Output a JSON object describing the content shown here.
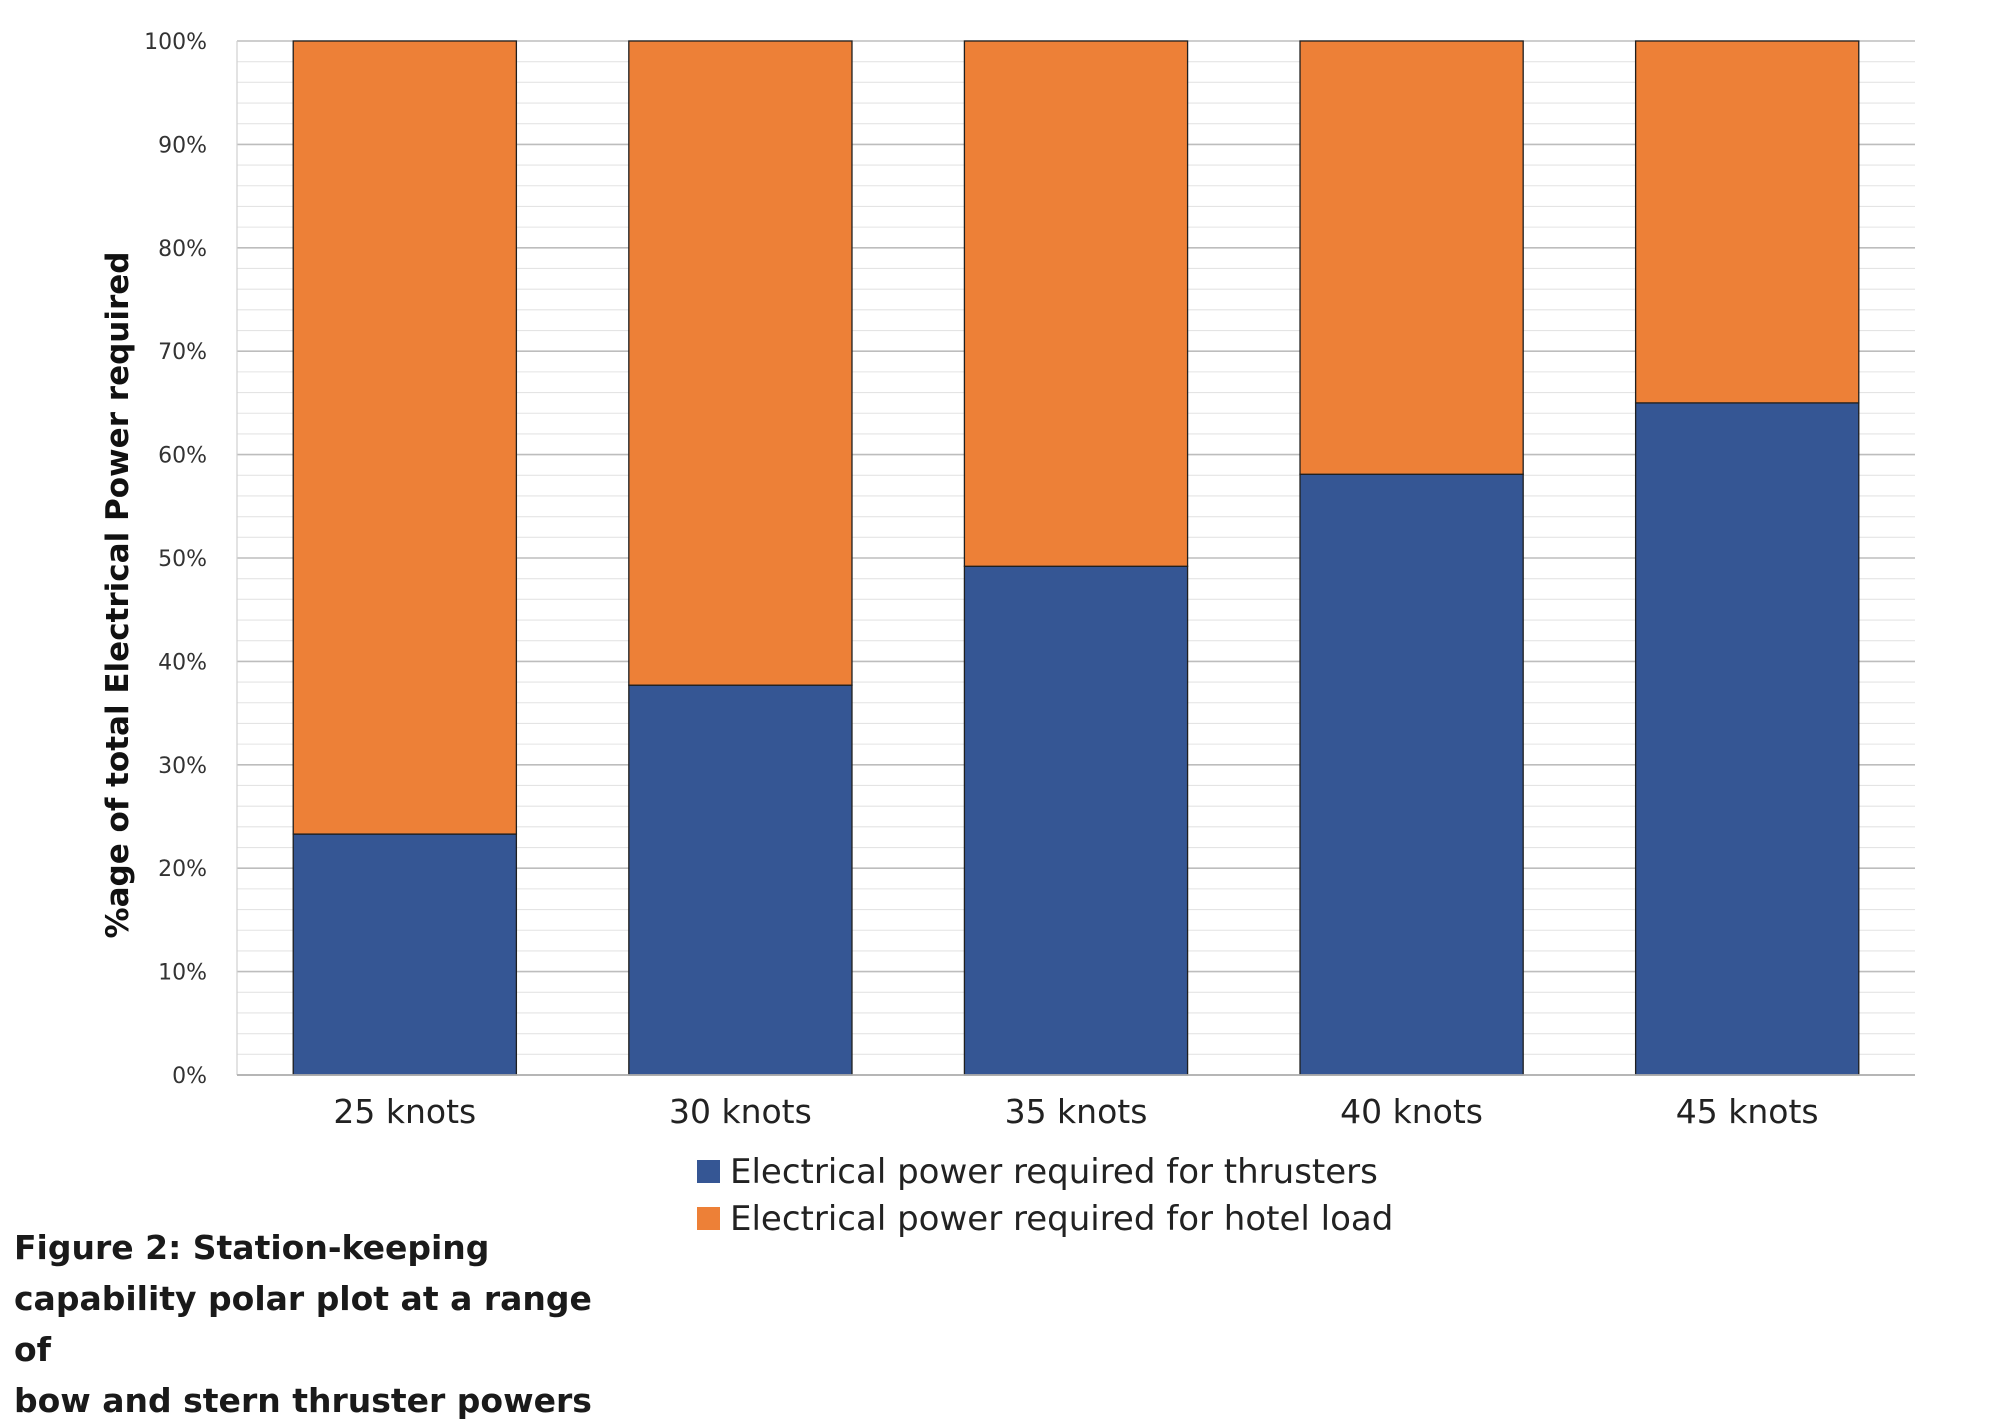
{
  "chart_data": {
    "type": "bar",
    "stacked": true,
    "categories": [
      "25 knots",
      "30 knots",
      "35 knots",
      "40 knots",
      "45 knots"
    ],
    "series": [
      {
        "name": "Electrical power required for thrusters",
        "color": "#355694",
        "values": [
          23.3,
          37.7,
          49.2,
          58.1,
          65.0
        ]
      },
      {
        "name": "Electrical power required for hotel load",
        "color": "#ed8037",
        "values": [
          76.7,
          62.3,
          50.8,
          41.9,
          35.0
        ]
      }
    ],
    "ylabel": "%age of total Electrical Power required",
    "xlabel": "",
    "ylim": [
      0,
      100
    ],
    "yticks": [
      "0%",
      "10%",
      "20%",
      "30%",
      "40%",
      "50%",
      "60%",
      "70%",
      "80%",
      "90%",
      "100%"
    ],
    "grid": true,
    "legend_position": "bottom"
  },
  "caption": {
    "line1": "Figure 2: Station-keeping",
    "line2": "capability polar plot at a range of",
    "line3": "bow and stern thruster powers"
  }
}
